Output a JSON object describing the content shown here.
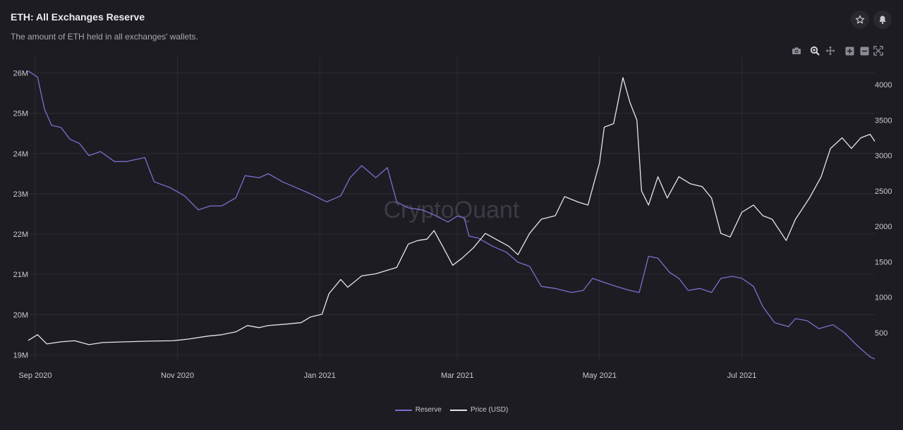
{
  "header": {
    "title": "ETH: All Exchanges Reserve",
    "subtitle": "The amount of ETH held in all exchanges' wallets."
  },
  "actions": {
    "favorite_icon": "star-outline-icon",
    "alert_icon": "bell-icon"
  },
  "toolbar": [
    "camera-icon",
    "zoom-icon",
    "pan-icon",
    "zoom-in-icon",
    "zoom-out-icon",
    "autoscale-icon"
  ],
  "watermark": "CryptoQuant",
  "colors": {
    "reserve": "#7b6fcf",
    "price": "#e6e6ea",
    "background": "#1d1c22",
    "grid": "#2c2b33",
    "text": "#c9c9d1"
  },
  "chart_data": {
    "type": "line",
    "title": "ETH: All Exchanges Reserve",
    "x_ticks": [
      "Sep 2020",
      "Nov 2020",
      "Jan 2021",
      "Mar 2021",
      "May 2021",
      "Jul 2021"
    ],
    "x_tick_dates": [
      "2020-09-01",
      "2020-11-01",
      "2021-01-01",
      "2021-03-01",
      "2021-05-01",
      "2021-07-01"
    ],
    "x_range": [
      "2020-08-29",
      "2021-08-27"
    ],
    "y_left": {
      "ticks": [
        "19M",
        "20M",
        "21M",
        "22M",
        "23M",
        "24M",
        "25M",
        "26M"
      ],
      "values": [
        19000000,
        20000000,
        21000000,
        22000000,
        23000000,
        24000000,
        25000000,
        26000000
      ],
      "range": [
        18850000,
        26150000
      ]
    },
    "y_right": {
      "ticks": [
        "500",
        "1000",
        "1500",
        "2000",
        "2500",
        "3000",
        "3500",
        "4000"
      ],
      "values": [
        500,
        1000,
        1500,
        2000,
        2500,
        3000,
        3500,
        4000
      ],
      "range": [
        100,
        4250
      ]
    },
    "grid": true,
    "legend_position": "bottom-center",
    "series": [
      {
        "name": "Reserve",
        "axis": "left",
        "points": [
          [
            "2020-08-29",
            26050000
          ],
          [
            "2020-09-02",
            25900000
          ],
          [
            "2020-09-05",
            25100000
          ],
          [
            "2020-09-08",
            24700000
          ],
          [
            "2020-09-12",
            24650000
          ],
          [
            "2020-09-16",
            24350000
          ],
          [
            "2020-09-20",
            24250000
          ],
          [
            "2020-09-24",
            23950000
          ],
          [
            "2020-09-29",
            24050000
          ],
          [
            "2020-10-05",
            23800000
          ],
          [
            "2020-10-10",
            23800000
          ],
          [
            "2020-10-18",
            23900000
          ],
          [
            "2020-10-22",
            23300000
          ],
          [
            "2020-10-29",
            23150000
          ],
          [
            "2020-11-04",
            22950000
          ],
          [
            "2020-11-10",
            22600000
          ],
          [
            "2020-11-15",
            22700000
          ],
          [
            "2020-11-20",
            22700000
          ],
          [
            "2020-11-26",
            22900000
          ],
          [
            "2020-11-30",
            23450000
          ],
          [
            "2020-12-06",
            23400000
          ],
          [
            "2020-12-10",
            23500000
          ],
          [
            "2020-12-16",
            23300000
          ],
          [
            "2020-12-24",
            23100000
          ],
          [
            "2020-12-28",
            23000000
          ],
          [
            "2021-01-04",
            22800000
          ],
          [
            "2021-01-10",
            22950000
          ],
          [
            "2021-01-14",
            23400000
          ],
          [
            "2021-01-19",
            23700000
          ],
          [
            "2021-01-25",
            23400000
          ],
          [
            "2021-01-30",
            23650000
          ],
          [
            "2021-02-03",
            22800000
          ],
          [
            "2021-02-08",
            22650000
          ],
          [
            "2021-02-14",
            22600000
          ],
          [
            "2021-02-20",
            22450000
          ],
          [
            "2021-02-25",
            22300000
          ],
          [
            "2021-03-01",
            22450000
          ],
          [
            "2021-03-04",
            22400000
          ],
          [
            "2021-03-06",
            21950000
          ],
          [
            "2021-03-10",
            21900000
          ],
          [
            "2021-03-16",
            21700000
          ],
          [
            "2021-03-22",
            21550000
          ],
          [
            "2021-03-27",
            21300000
          ],
          [
            "2021-04-01",
            21200000
          ],
          [
            "2021-04-06",
            20700000
          ],
          [
            "2021-04-12",
            20650000
          ],
          [
            "2021-04-19",
            20550000
          ],
          [
            "2021-04-24",
            20600000
          ],
          [
            "2021-04-28",
            20900000
          ],
          [
            "2021-05-03",
            20800000
          ],
          [
            "2021-05-08",
            20700000
          ],
          [
            "2021-05-14",
            20600000
          ],
          [
            "2021-05-18",
            20550000
          ],
          [
            "2021-05-22",
            21450000
          ],
          [
            "2021-05-26",
            21400000
          ],
          [
            "2021-05-31",
            21050000
          ],
          [
            "2021-06-04",
            20900000
          ],
          [
            "2021-06-08",
            20600000
          ],
          [
            "2021-06-13",
            20650000
          ],
          [
            "2021-06-18",
            20550000
          ],
          [
            "2021-06-22",
            20900000
          ],
          [
            "2021-06-27",
            20950000
          ],
          [
            "2021-07-01",
            20900000
          ],
          [
            "2021-07-06",
            20700000
          ],
          [
            "2021-07-10",
            20200000
          ],
          [
            "2021-07-15",
            19800000
          ],
          [
            "2021-07-21",
            19700000
          ],
          [
            "2021-07-24",
            19900000
          ],
          [
            "2021-07-29",
            19850000
          ],
          [
            "2021-08-03",
            19650000
          ],
          [
            "2021-08-09",
            19750000
          ],
          [
            "2021-08-14",
            19550000
          ],
          [
            "2021-08-20",
            19200000
          ],
          [
            "2021-08-25",
            18950000
          ],
          [
            "2021-08-27",
            18900000
          ]
        ]
      },
      {
        "name": "Price (USD)",
        "axis": "right",
        "points": [
          [
            "2020-08-29",
            390
          ],
          [
            "2020-09-02",
            470
          ],
          [
            "2020-09-06",
            340
          ],
          [
            "2020-09-12",
            370
          ],
          [
            "2020-09-18",
            385
          ],
          [
            "2020-09-24",
            330
          ],
          [
            "2020-09-30",
            360
          ],
          [
            "2020-10-10",
            370
          ],
          [
            "2020-10-20",
            380
          ],
          [
            "2020-10-30",
            385
          ],
          [
            "2020-11-06",
            410
          ],
          [
            "2020-11-14",
            450
          ],
          [
            "2020-11-20",
            470
          ],
          [
            "2020-11-26",
            510
          ],
          [
            "2020-12-01",
            600
          ],
          [
            "2020-12-06",
            570
          ],
          [
            "2020-12-10",
            600
          ],
          [
            "2020-12-18",
            620
          ],
          [
            "2020-12-24",
            640
          ],
          [
            "2020-12-28",
            720
          ],
          [
            "2021-01-02",
            760
          ],
          [
            "2021-01-05",
            1050
          ],
          [
            "2021-01-10",
            1250
          ],
          [
            "2021-01-13",
            1140
          ],
          [
            "2021-01-19",
            1300
          ],
          [
            "2021-01-25",
            1330
          ],
          [
            "2021-01-30",
            1380
          ],
          [
            "2021-02-03",
            1420
          ],
          [
            "2021-02-08",
            1750
          ],
          [
            "2021-02-12",
            1800
          ],
          [
            "2021-02-16",
            1820
          ],
          [
            "2021-02-19",
            1940
          ],
          [
            "2021-02-23",
            1700
          ],
          [
            "2021-02-27",
            1450
          ],
          [
            "2021-03-03",
            1550
          ],
          [
            "2021-03-08",
            1700
          ],
          [
            "2021-03-13",
            1900
          ],
          [
            "2021-03-18",
            1810
          ],
          [
            "2021-03-23",
            1720
          ],
          [
            "2021-03-27",
            1600
          ],
          [
            "2021-04-01",
            1900
          ],
          [
            "2021-04-06",
            2100
          ],
          [
            "2021-04-12",
            2150
          ],
          [
            "2021-04-16",
            2420
          ],
          [
            "2021-04-22",
            2340
          ],
          [
            "2021-04-26",
            2300
          ],
          [
            "2021-05-01",
            2900
          ],
          [
            "2021-05-03",
            3400
          ],
          [
            "2021-05-07",
            3450
          ],
          [
            "2021-05-11",
            4100
          ],
          [
            "2021-05-14",
            3750
          ],
          [
            "2021-05-17",
            3500
          ],
          [
            "2021-05-19",
            2500
          ],
          [
            "2021-05-22",
            2300
          ],
          [
            "2021-05-26",
            2700
          ],
          [
            "2021-05-30",
            2400
          ],
          [
            "2021-06-04",
            2700
          ],
          [
            "2021-06-09",
            2600
          ],
          [
            "2021-06-14",
            2560
          ],
          [
            "2021-06-18",
            2400
          ],
          [
            "2021-06-22",
            1900
          ],
          [
            "2021-06-26",
            1850
          ],
          [
            "2021-07-01",
            2200
          ],
          [
            "2021-07-06",
            2300
          ],
          [
            "2021-07-10",
            2150
          ],
          [
            "2021-07-14",
            2100
          ],
          [
            "2021-07-20",
            1800
          ],
          [
            "2021-07-24",
            2100
          ],
          [
            "2021-07-30",
            2400
          ],
          [
            "2021-08-04",
            2700
          ],
          [
            "2021-08-08",
            3100
          ],
          [
            "2021-08-13",
            3250
          ],
          [
            "2021-08-17",
            3100
          ],
          [
            "2021-08-21",
            3250
          ],
          [
            "2021-08-25",
            3300
          ],
          [
            "2021-08-27",
            3200
          ]
        ]
      }
    ]
  }
}
